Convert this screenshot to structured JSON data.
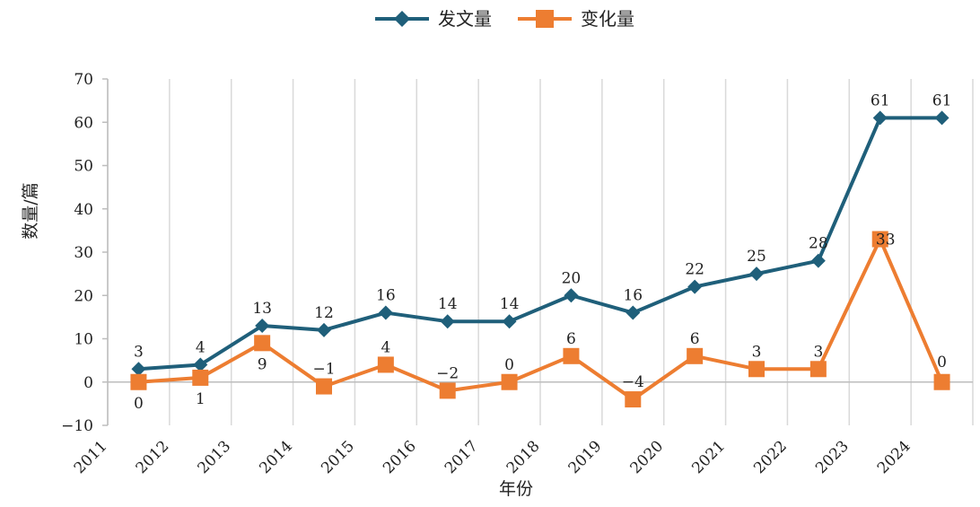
{
  "chart_data": {
    "type": "line",
    "categories": [
      "2011",
      "2012",
      "2013",
      "2014",
      "2015",
      "2016",
      "2017",
      "2018",
      "2019",
      "2020",
      "2021",
      "2022",
      "2023",
      "2024"
    ],
    "series": [
      {
        "name": "发文量",
        "values": [
          3,
          4,
          13,
          12,
          16,
          14,
          14,
          20,
          16,
          22,
          25,
          28,
          61,
          61
        ],
        "color": "#1f5f7a",
        "marker": "diamond"
      },
      {
        "name": "变化量",
        "values": [
          0,
          1,
          9,
          -1,
          4,
          -2,
          0,
          6,
          -4,
          6,
          3,
          3,
          33,
          0
        ],
        "color": "#ed7d31",
        "marker": "square"
      }
    ],
    "data_labels": {
      "发文量": [
        "3",
        "4",
        "13",
        "12",
        "16",
        "14",
        "14",
        "20",
        "16",
        "22",
        "25",
        "28",
        "61",
        "61"
      ],
      "变化量": [
        "0",
        "1",
        "9",
        "−1",
        "4",
        "−2",
        "0",
        "6",
        "−4",
        "6",
        "3",
        "3",
        "33",
        "0"
      ]
    },
    "xlabel": "年份",
    "ylabel": "数量/篇",
    "ylim": [
      -10,
      70
    ],
    "yticks": [
      -10,
      0,
      10,
      20,
      30,
      40,
      50,
      60,
      70
    ],
    "ytick_labels": [
      "−10",
      "0",
      "10",
      "20",
      "30",
      "40",
      "50",
      "60",
      "70"
    ],
    "grid": "vertical",
    "legend_position": "top-center"
  }
}
